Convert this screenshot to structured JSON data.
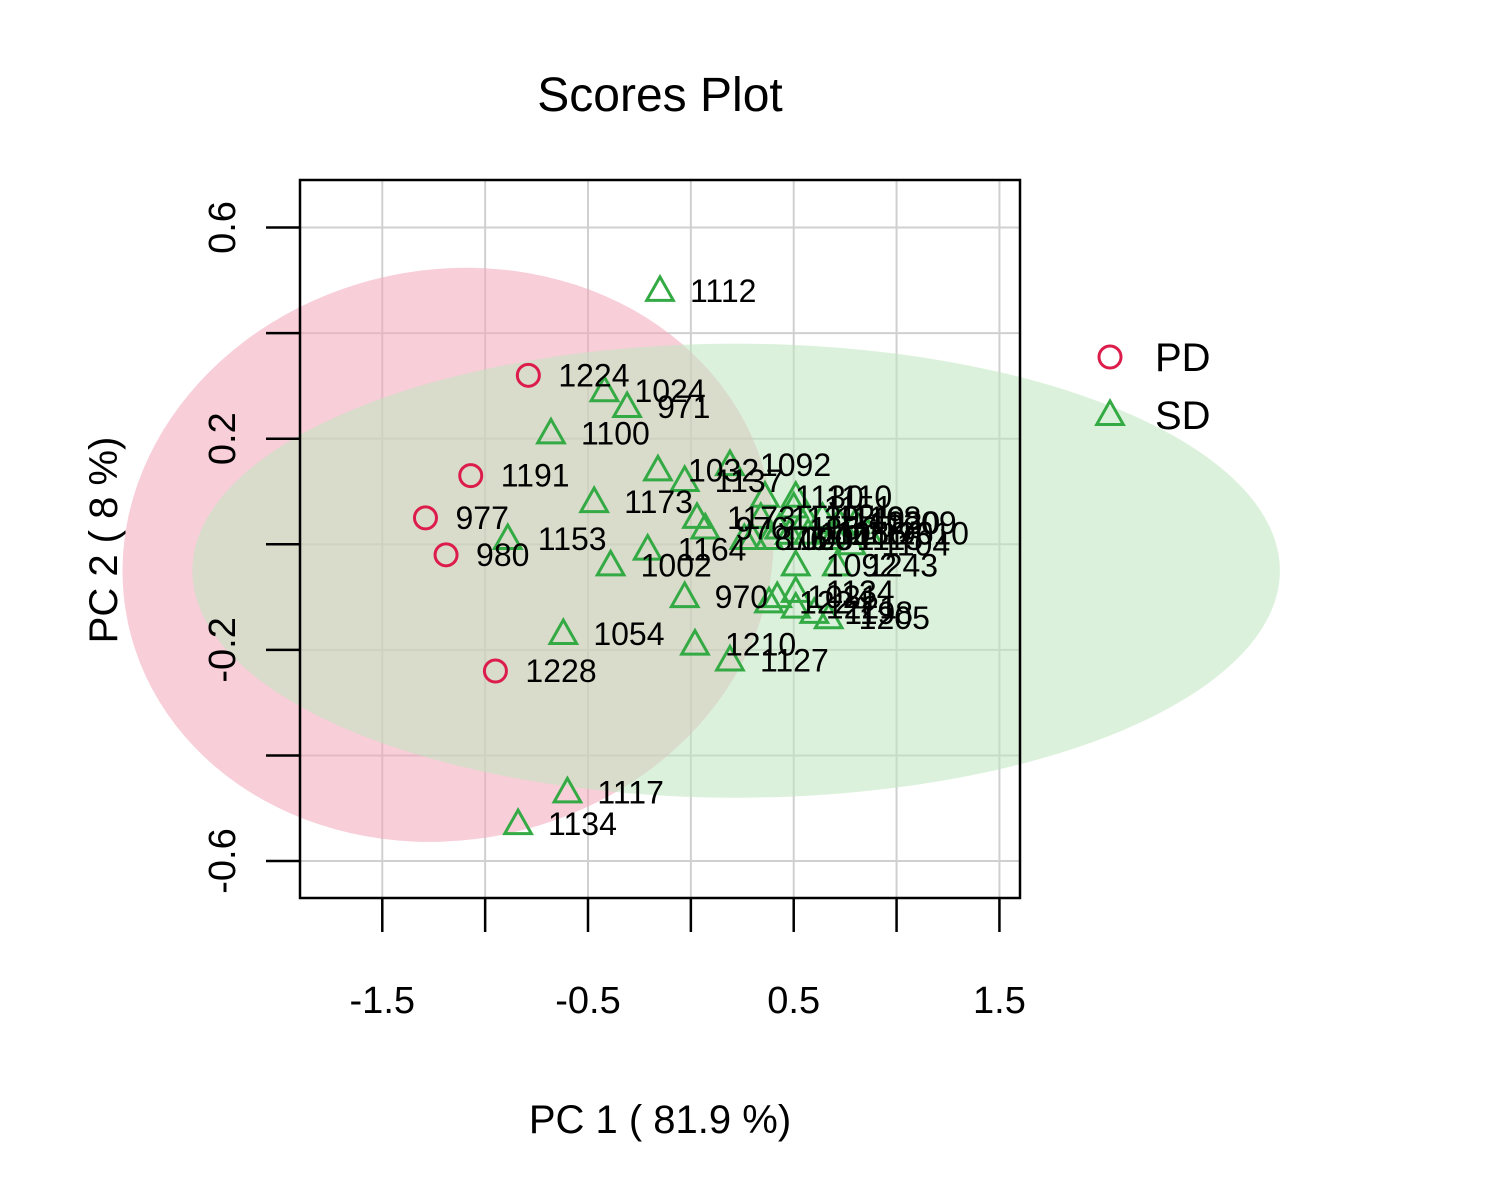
{
  "chart_data": {
    "type": "scatter",
    "title": "Scores Plot",
    "xlabel": "PC 1 ( 81.9 %)",
    "ylabel": "PC 2 ( 8 %)",
    "xlim": [
      -1.9,
      1.6
    ],
    "ylim": [
      -0.67,
      0.69
    ],
    "x_ticks": [
      -1.5,
      -1.0,
      -0.5,
      0.0,
      0.5,
      1.0,
      1.5
    ],
    "x_tick_labels": [
      "-1.5",
      "",
      "-0.5",
      "",
      "0.5",
      "",
      "1.5"
    ],
    "y_ticks": [
      -0.6,
      -0.4,
      -0.2,
      0.0,
      0.2,
      0.4,
      0.6
    ],
    "y_tick_labels": [
      "-0.6",
      "",
      "-0.2",
      "",
      "0.2",
      "",
      "0.6"
    ],
    "grid": true,
    "legend_position": "right",
    "series": [
      {
        "name": "PD",
        "marker": "circle",
        "color": "#dc1c4a",
        "ellipse": {
          "cx": -1.18,
          "cy": -0.02,
          "rx": 0.62,
          "ry": 0.54,
          "angle": -12,
          "fill": "#f3a6ba"
        },
        "points": [
          {
            "label": "1224",
            "x": -0.79,
            "y": 0.32
          },
          {
            "label": "1191",
            "x": -1.07,
            "y": 0.13
          },
          {
            "label": "977",
            "x": -1.29,
            "y": 0.05
          },
          {
            "label": "980",
            "x": -1.19,
            "y": -0.02
          },
          {
            "label": "1228",
            "x": -0.95,
            "y": -0.24
          }
        ]
      },
      {
        "name": "SD",
        "marker": "triangle",
        "color": "#33aa44",
        "ellipse": {
          "cx": 0.22,
          "cy": -0.05,
          "rx": 1.03,
          "ry": 0.43,
          "angle": 0,
          "fill": "#c0e6c0"
        },
        "points": [
          {
            "label": "1112",
            "x": -0.15,
            "y": 0.48
          },
          {
            "label": "1024",
            "x": -0.42,
            "y": 0.29
          },
          {
            "label": "971",
            "x": -0.31,
            "y": 0.26
          },
          {
            "label": "1100",
            "x": -0.68,
            "y": 0.21
          },
          {
            "label": "1092",
            "x": 0.19,
            "y": 0.15
          },
          {
            "label": "1032",
            "x": -0.16,
            "y": 0.14
          },
          {
            "label": "1137",
            "x": -0.03,
            "y": 0.12
          },
          {
            "label": "1173",
            "x": -0.47,
            "y": 0.08
          },
          {
            "label": "1130",
            "x": 0.36,
            "y": 0.09
          },
          {
            "label": "1110",
            "x": 0.51,
            "y": 0.09
          },
          {
            "label": "1151",
            "x": 0.5,
            "y": 0.07
          },
          {
            "label": "1173",
            "x": 0.03,
            "y": 0.05
          },
          {
            "label": "1139",
            "x": 0.34,
            "y": 0.05
          },
          {
            "label": "1149",
            "x": 0.56,
            "y": 0.05
          },
          {
            "label": "1168",
            "x": 0.64,
            "y": 0.05
          },
          {
            "label": "1030",
            "x": 0.72,
            "y": 0.04
          },
          {
            "label": "1209",
            "x": 0.8,
            "y": 0.04
          },
          {
            "label": "1153",
            "x": -0.89,
            "y": 0.01
          },
          {
            "label": "976",
            "x": 0.07,
            "y": 0.03
          },
          {
            "label": "1166",
            "x": 0.43,
            "y": 0.03
          },
          {
            "label": "1106",
            "x": 0.48,
            "y": 0.02
          },
          {
            "label": "1186",
            "x": 0.57,
            "y": 0.02
          },
          {
            "label": "1115",
            "x": 0.66,
            "y": 0.01
          },
          {
            "label": "1196",
            "x": 0.7,
            "y": 0.02
          },
          {
            "label": "1010",
            "x": 0.86,
            "y": 0.02
          },
          {
            "label": "1104",
            "x": 0.78,
            "y": 0.0
          },
          {
            "label": "876",
            "x": 0.26,
            "y": 0.01
          },
          {
            "label": "1000",
            "x": 0.3,
            "y": 0.01
          },
          {
            "label": "1204",
            "x": 0.38,
            "y": 0.01
          },
          {
            "label": "1164",
            "x": -0.21,
            "y": -0.01
          },
          {
            "label": "1002",
            "x": -0.39,
            "y": -0.04
          },
          {
            "label": "1092",
            "x": 0.51,
            "y": -0.04
          },
          {
            "label": "1243",
            "x": 0.71,
            "y": -0.04
          },
          {
            "label": "1134",
            "x": 0.51,
            "y": -0.09
          },
          {
            "label": "970",
            "x": -0.03,
            "y": -0.1
          },
          {
            "label": "1021",
            "x": 0.42,
            "y": -0.1
          },
          {
            "label": "1224",
            "x": 0.38,
            "y": -0.11
          },
          {
            "label": "1221",
            "x": 0.51,
            "y": -0.12
          },
          {
            "label": "1198",
            "x": 0.6,
            "y": -0.13
          },
          {
            "label": "1205",
            "x": 0.67,
            "y": -0.14
          },
          {
            "label": "1054",
            "x": -0.62,
            "y": -0.17
          },
          {
            "label": "1210",
            "x": 0.02,
            "y": -0.19
          },
          {
            "label": "1127",
            "x": 0.19,
            "y": -0.22
          },
          {
            "label": "1117",
            "x": -0.6,
            "y": -0.47
          },
          {
            "label": "1134",
            "x": -0.84,
            "y": -0.53
          }
        ]
      }
    ]
  }
}
